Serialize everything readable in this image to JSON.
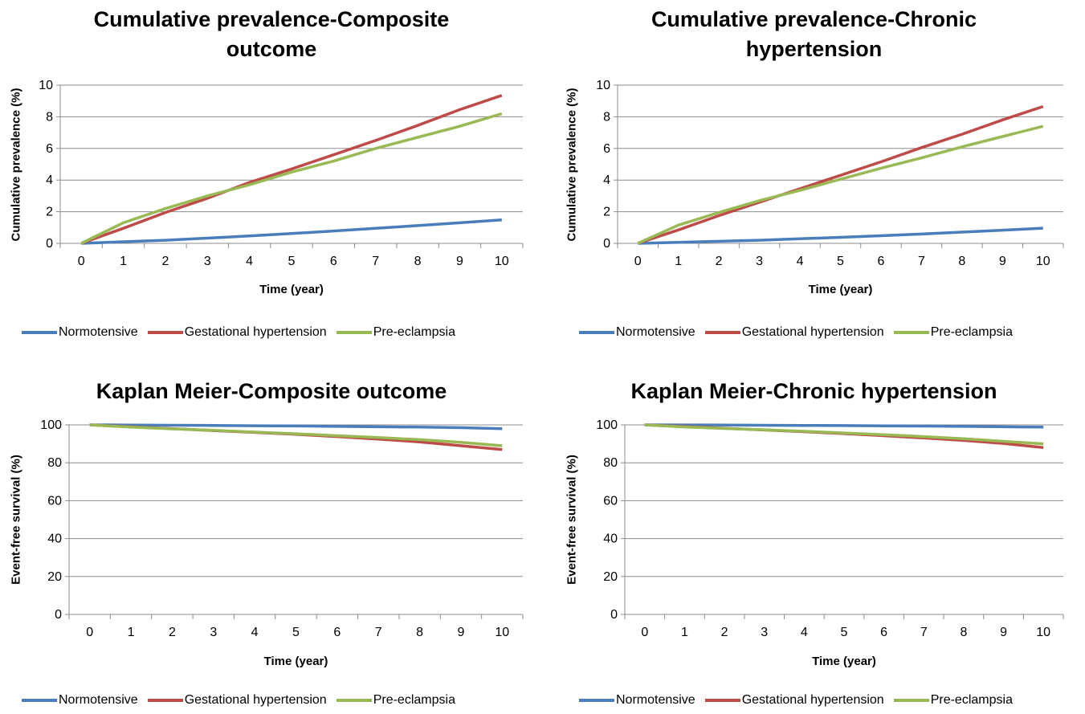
{
  "chart_data": [
    {
      "type": "line",
      "title": "Cumulative prevalence-Composite outcome",
      "xlabel": "Time (year)",
      "ylabel": "Cumulative prevalence (%)",
      "x": [
        0,
        1,
        2,
        3,
        4,
        5,
        6,
        7,
        8,
        9,
        10
      ],
      "xticks": [
        "0",
        "1",
        "2",
        "3",
        "4",
        "5",
        "6",
        "7",
        "8",
        "9",
        "10"
      ],
      "yticks": [
        "0",
        "2",
        "4",
        "6",
        "8",
        "10"
      ],
      "ylim": [
        0,
        10
      ],
      "grid": true,
      "legend": "bottom",
      "series": [
        {
          "name": "Normotensive",
          "color": "#4a7ebb",
          "values": [
            0,
            0.1,
            0.2,
            0.33,
            0.47,
            0.62,
            0.78,
            0.95,
            1.12,
            1.3,
            1.48
          ]
        },
        {
          "name": "Gestational hypertension",
          "color": "#be4b48",
          "values": [
            0,
            0.95,
            1.95,
            2.85,
            3.85,
            4.7,
            5.6,
            6.5,
            7.45,
            8.45,
            9.35
          ]
        },
        {
          "name": "Pre-eclampsia",
          "color": "#98b954",
          "values": [
            0,
            1.3,
            2.2,
            3.0,
            3.7,
            4.5,
            5.2,
            6.0,
            6.7,
            7.4,
            8.2
          ]
        }
      ]
    },
    {
      "type": "line",
      "title": "Cumulative prevalence-Chronic hypertension",
      "xlabel": "Time (year)",
      "ylabel": "Cumulative prevalence (%)",
      "x": [
        0,
        1,
        2,
        3,
        4,
        5,
        6,
        7,
        8,
        9,
        10
      ],
      "xticks": [
        "0",
        "1",
        "2",
        "3",
        "4",
        "5",
        "6",
        "7",
        "8",
        "9",
        "10"
      ],
      "yticks": [
        "0",
        "2",
        "4",
        "6",
        "8",
        "10"
      ],
      "ylim": [
        0,
        10
      ],
      "grid": true,
      "legend": "bottom",
      "series": [
        {
          "name": "Normotensive",
          "color": "#4a7ebb",
          "values": [
            0,
            0.06,
            0.13,
            0.2,
            0.29,
            0.38,
            0.48,
            0.59,
            0.71,
            0.83,
            0.96
          ]
        },
        {
          "name": "Gestational hypertension",
          "color": "#be4b48",
          "values": [
            0,
            0.85,
            1.75,
            2.6,
            3.45,
            4.3,
            5.15,
            6.05,
            6.9,
            7.8,
            8.65
          ]
        },
        {
          "name": "Pre-eclampsia",
          "color": "#98b954",
          "values": [
            0,
            1.15,
            1.95,
            2.7,
            3.35,
            4.05,
            4.75,
            5.4,
            6.1,
            6.75,
            7.4
          ]
        }
      ]
    },
    {
      "type": "line",
      "title": "Kaplan Meier-Composite outcome",
      "xlabel": "Time (year)",
      "ylabel": "Event-free survival (%)",
      "x": [
        0,
        1,
        2,
        3,
        4,
        5,
        6,
        7,
        8,
        9,
        10
      ],
      "xticks": [
        "0",
        "1",
        "2",
        "3",
        "4",
        "5",
        "6",
        "7",
        "8",
        "9",
        "10"
      ],
      "yticks": [
        "0",
        "20",
        "40",
        "60",
        "80",
        "100"
      ],
      "ylim": [
        0,
        100
      ],
      "grid": true,
      "legend": "bottom",
      "series": [
        {
          "name": "Normotensive",
          "color": "#4a7ebb",
          "values": [
            100,
            99.9,
            99.8,
            99.7,
            99.55,
            99.4,
            99.2,
            99.0,
            98.8,
            98.5,
            98.0
          ]
        },
        {
          "name": "Gestational hypertension",
          "color": "#be4b48",
          "values": [
            100,
            99,
            98,
            97,
            96,
            95,
            93.8,
            92.5,
            91,
            89,
            87
          ]
        },
        {
          "name": "Pre-eclampsia",
          "color": "#98b954",
          "values": [
            100,
            98.8,
            97.9,
            97.1,
            96.2,
            95.3,
            94.3,
            93.3,
            92.2,
            90.8,
            89
          ]
        }
      ]
    },
    {
      "type": "line",
      "title": "Kaplan Meier-Chronic hypertension",
      "xlabel": "Time (year)",
      "ylabel": "Event-free survival (%)",
      "x": [
        0,
        1,
        2,
        3,
        4,
        5,
        6,
        7,
        8,
        9,
        10
      ],
      "xticks": [
        "0",
        "1",
        "2",
        "3",
        "4",
        "5",
        "6",
        "7",
        "8",
        "9",
        "10"
      ],
      "yticks": [
        "0",
        "20",
        "40",
        "60",
        "80",
        "100"
      ],
      "ylim": [
        0,
        100
      ],
      "grid": true,
      "legend": "bottom",
      "series": [
        {
          "name": "Normotensive",
          "color": "#4a7ebb",
          "values": [
            100,
            99.95,
            99.9,
            99.8,
            99.7,
            99.6,
            99.5,
            99.35,
            99.2,
            99.0,
            98.8
          ]
        },
        {
          "name": "Gestational hypertension",
          "color": "#be4b48",
          "values": [
            100,
            99.1,
            98.2,
            97.3,
            96.4,
            95.4,
            94.3,
            93.1,
            91.8,
            90.2,
            88
          ]
        },
        {
          "name": "Pre-eclampsia",
          "color": "#98b954",
          "values": [
            100,
            98.9,
            98.1,
            97.4,
            96.6,
            95.7,
            94.8,
            93.8,
            92.7,
            91.3,
            90
          ]
        }
      ]
    }
  ]
}
